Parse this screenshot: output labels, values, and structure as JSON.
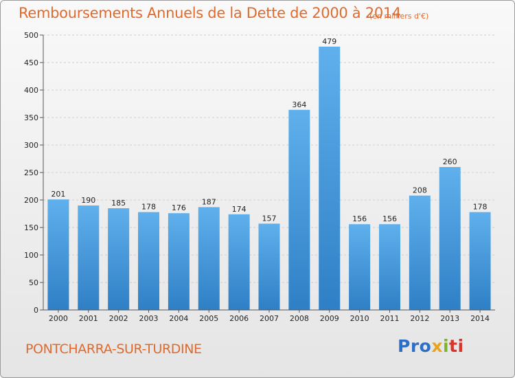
{
  "chart_data": {
    "type": "bar",
    "title": "Remboursements Annuels de la Dette de 2000 à 2014",
    "unit": "(en milliers d'€)",
    "categories": [
      "2000",
      "2001",
      "2002",
      "2003",
      "2004",
      "2005",
      "2006",
      "2007",
      "2008",
      "2009",
      "2010",
      "2011",
      "2012",
      "2013",
      "2014"
    ],
    "values": [
      201,
      190,
      185,
      178,
      176,
      187,
      174,
      157,
      364,
      479,
      156,
      156,
      208,
      260,
      178
    ],
    "ylim": [
      0,
      500
    ],
    "yticks": [
      0,
      50,
      100,
      150,
      200,
      250,
      300,
      350,
      400,
      450,
      500
    ],
    "grid": true,
    "bar_color": "#4a9de0"
  },
  "commune": "PONTCHARRA-SUR-TURDINE",
  "logo": {
    "parts": [
      "Pro",
      "x",
      "i",
      "ti"
    ]
  }
}
